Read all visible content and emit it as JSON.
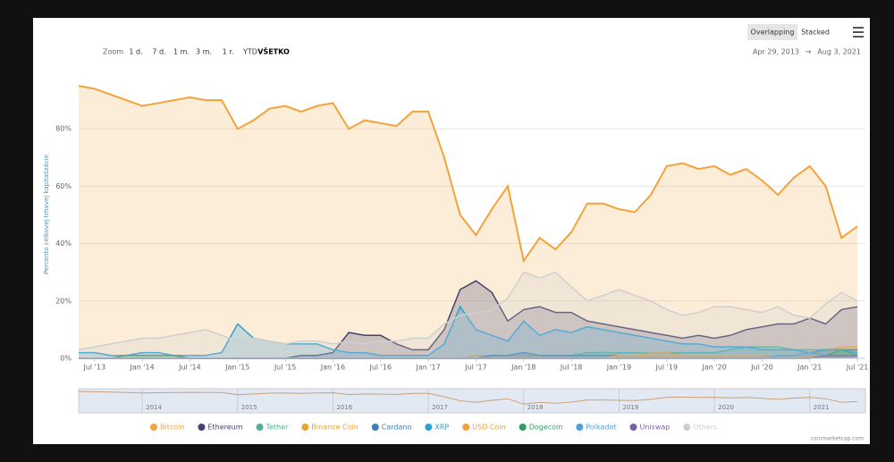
{
  "toolbar": {
    "zoom": "Zoom",
    "ranges": [
      "1 d.",
      "7 d.",
      "1 m.",
      "3 m.",
      "1 r.",
      "YTD",
      "VŠETKO"
    ],
    "modes": [
      "Overlapping",
      "Stacked"
    ],
    "date_from": "Apr 29, 2013",
    "date_sep": "→",
    "date_to": "Aug 3, 2021"
  },
  "credit": "coinmarketcap.com",
  "chart_data": {
    "type": "area",
    "y_label": "Percento celkovej trhovej kapitalizácie",
    "grid": true,
    "xlim": [
      "2013-05",
      "2021-08"
    ],
    "x": [
      "2013-05",
      "2013-07",
      "2013-09",
      "2013-11",
      "2014-01",
      "2014-03",
      "2014-05",
      "2014-07",
      "2014-09",
      "2014-11",
      "2015-01",
      "2015-03",
      "2015-05",
      "2015-07",
      "2015-09",
      "2015-11",
      "2016-01",
      "2016-03",
      "2016-05",
      "2016-07",
      "2016-09",
      "2016-11",
      "2017-01",
      "2017-03",
      "2017-05",
      "2017-07",
      "2017-09",
      "2017-11",
      "2018-01",
      "2018-03",
      "2018-05",
      "2018-07",
      "2018-09",
      "2018-11",
      "2019-01",
      "2019-03",
      "2019-05",
      "2019-07",
      "2019-09",
      "2019-11",
      "2020-01",
      "2020-03",
      "2020-05",
      "2020-07",
      "2020-09",
      "2020-11",
      "2021-01",
      "2021-03",
      "2021-05",
      "2021-07"
    ],
    "xticks": [
      {
        "value": "2013-07",
        "label": "Jul '13"
      },
      {
        "value": "2014-01",
        "label": "Jan '14"
      },
      {
        "value": "2014-07",
        "label": "Jul '14"
      },
      {
        "value": "2015-01",
        "label": "Jan '15"
      },
      {
        "value": "2015-07",
        "label": "Jul '15"
      },
      {
        "value": "2016-01",
        "label": "Jan '16"
      },
      {
        "value": "2016-07",
        "label": "Jul '16"
      },
      {
        "value": "2017-01",
        "label": "Jan '17"
      },
      {
        "value": "2017-07",
        "label": "Jul '17"
      },
      {
        "value": "2018-01",
        "label": "Jan '18"
      },
      {
        "value": "2018-07",
        "label": "Jul '18"
      },
      {
        "value": "2019-01",
        "label": "Jan '19"
      },
      {
        "value": "2019-07",
        "label": "Jul '19"
      },
      {
        "value": "2020-01",
        "label": "Jan '20"
      },
      {
        "value": "2020-07",
        "label": "Jul '20"
      },
      {
        "value": "2021-01",
        "label": "Jan '21"
      },
      {
        "value": "2021-07",
        "label": "Jul '21"
      }
    ],
    "ylim": [
      0,
      100
    ],
    "yticks": [
      {
        "value": 0,
        "label": "0%"
      },
      {
        "value": 20,
        "label": "20%"
      },
      {
        "value": 40,
        "label": "40%"
      },
      {
        "value": 60,
        "label": "60%"
      },
      {
        "value": 80,
        "label": "80%"
      }
    ],
    "navigator_ticks": [
      {
        "value": "2014-01",
        "label": "2014"
      },
      {
        "value": "2015-01",
        "label": "2015"
      },
      {
        "value": "2016-01",
        "label": "2016"
      },
      {
        "value": "2017-01",
        "label": "2017"
      },
      {
        "value": "2018-01",
        "label": "2018"
      },
      {
        "value": "2019-01",
        "label": "2019"
      },
      {
        "value": "2020-01",
        "label": "2020"
      },
      {
        "value": "2021-01",
        "label": "2021"
      }
    ],
    "series": [
      {
        "name": "Bitcoin",
        "color": "#f2a33a",
        "values": [
          95,
          94,
          92,
          90,
          88,
          89,
          90,
          91,
          90,
          90,
          80,
          83,
          87,
          88,
          86,
          88,
          89,
          80,
          83,
          82,
          81,
          86,
          86,
          70,
          50,
          43,
          52,
          60,
          34,
          42,
          38,
          44,
          54,
          54,
          52,
          51,
          57,
          67,
          68,
          66,
          67,
          64,
          66,
          62,
          57,
          63,
          67,
          60,
          42,
          46
        ]
      },
      {
        "name": "Ethereum",
        "color": "#45426e",
        "values": [
          0,
          0,
          0,
          0,
          0,
          0,
          0,
          0,
          0,
          0,
          0,
          0,
          0,
          0,
          1,
          1,
          2,
          9,
          8,
          8,
          5,
          3,
          3,
          10,
          24,
          27,
          23,
          13,
          17,
          18,
          16,
          16,
          13,
          12,
          11,
          10,
          9,
          8,
          7,
          8,
          7,
          8,
          10,
          11,
          12,
          12,
          14,
          12,
          17,
          18
        ]
      },
      {
        "name": "Tether",
        "color": "#50af95",
        "values": [
          0,
          0,
          0,
          0,
          0,
          0,
          0,
          0,
          0,
          0,
          0,
          0,
          0,
          0,
          0,
          0,
          0,
          0,
          0,
          0,
          0,
          0,
          0,
          0,
          0,
          0,
          1,
          1,
          1,
          1,
          1,
          1,
          2,
          2,
          2,
          2,
          2,
          2,
          2,
          2,
          2,
          3,
          4,
          4,
          4,
          3,
          3,
          3,
          3,
          3
        ]
      },
      {
        "name": "Binance Coin",
        "color": "#e8a230",
        "values": [
          0,
          0,
          0,
          0,
          0,
          0,
          0,
          0,
          0,
          0,
          0,
          0,
          0,
          0,
          0,
          0,
          0,
          0,
          0,
          0,
          0,
          0,
          0,
          0,
          0,
          1,
          1,
          1,
          1,
          1,
          1,
          1,
          1,
          1,
          1,
          1,
          2,
          2,
          1,
          1,
          1,
          1,
          1,
          1,
          1,
          1,
          1,
          3,
          4,
          4
        ]
      },
      {
        "name": "Cardano",
        "color": "#3a7fb8",
        "values": [
          0,
          0,
          0,
          0,
          0,
          0,
          0,
          0,
          0,
          0,
          0,
          0,
          0,
          0,
          0,
          0,
          0,
          0,
          0,
          0,
          0,
          0,
          0,
          0,
          0,
          0,
          1,
          1,
          2,
          1,
          1,
          1,
          1,
          1,
          1,
          1,
          1,
          1,
          1,
          1,
          1,
          1,
          1,
          1,
          1,
          1,
          2,
          3,
          3,
          3
        ]
      },
      {
        "name": "XRP",
        "color": "#2aa0d6",
        "values": [
          2,
          2,
          1,
          1,
          2,
          2,
          1,
          1,
          1,
          2,
          12,
          7,
          6,
          5,
          5,
          5,
          3,
          2,
          2,
          1,
          1,
          1,
          1,
          5,
          18,
          10,
          8,
          6,
          13,
          8,
          10,
          9,
          11,
          10,
          9,
          8,
          7,
          6,
          5,
          5,
          4,
          4,
          4,
          3,
          3,
          3,
          2,
          3,
          3,
          2
        ]
      },
      {
        "name": "USD Coin",
        "color": "#f0a03c",
        "values": [
          0,
          0,
          0,
          0,
          0,
          0,
          0,
          0,
          0,
          0,
          0,
          0,
          0,
          0,
          0,
          0,
          0,
          0,
          0,
          0,
          0,
          0,
          0,
          0,
          0,
          0,
          0,
          0,
          0,
          0,
          0,
          0,
          0,
          0,
          1,
          1,
          1,
          1,
          1,
          1,
          1,
          1,
          1,
          1,
          1,
          1,
          1,
          1,
          1,
          1
        ]
      },
      {
        "name": "Dogecoin",
        "color": "#2e9e5f",
        "values": [
          0,
          0,
          0,
          1,
          1,
          1,
          1,
          0,
          0,
          0,
          0,
          0,
          0,
          0,
          0,
          0,
          0,
          0,
          0,
          0,
          0,
          0,
          0,
          0,
          0,
          0,
          0,
          0,
          0,
          0,
          0,
          0,
          0,
          0,
          0,
          0,
          0,
          0,
          0,
          0,
          0,
          0,
          0,
          0,
          0,
          0,
          0,
          1,
          3,
          1
        ]
      },
      {
        "name": "Polkadot",
        "color": "#4aa3df",
        "values": [
          0,
          0,
          0,
          0,
          0,
          0,
          0,
          0,
          0,
          0,
          0,
          0,
          0,
          0,
          0,
          0,
          0,
          0,
          0,
          0,
          0,
          0,
          0,
          0,
          0,
          0,
          0,
          0,
          0,
          0,
          0,
          0,
          0,
          0,
          0,
          0,
          0,
          0,
          0,
          0,
          0,
          0,
          0,
          0,
          1,
          1,
          2,
          1,
          1,
          1
        ]
      },
      {
        "name": "Uniswap",
        "color": "#7a5fb0",
        "values": [
          0,
          0,
          0,
          0,
          0,
          0,
          0,
          0,
          0,
          0,
          0,
          0,
          0,
          0,
          0,
          0,
          0,
          0,
          0,
          0,
          0,
          0,
          0,
          0,
          0,
          0,
          0,
          0,
          0,
          0,
          0,
          0,
          0,
          0,
          0,
          0,
          0,
          0,
          0,
          0,
          0,
          0,
          0,
          0,
          0,
          0,
          0,
          1,
          1,
          1
        ]
      },
      {
        "name": "Others",
        "color": "#cfcfcf",
        "values": [
          3,
          4,
          5,
          6,
          7,
          7,
          8,
          9,
          10,
          8,
          6,
          7,
          6,
          5,
          6,
          6,
          5,
          6,
          5,
          6,
          6,
          7,
          7,
          12,
          15,
          16,
          17,
          21,
          30,
          28,
          30,
          25,
          20,
          22,
          24,
          22,
          20,
          17,
          15,
          16,
          18,
          18,
          17,
          16,
          18,
          15,
          14,
          19,
          23,
          20
        ]
      }
    ]
  }
}
